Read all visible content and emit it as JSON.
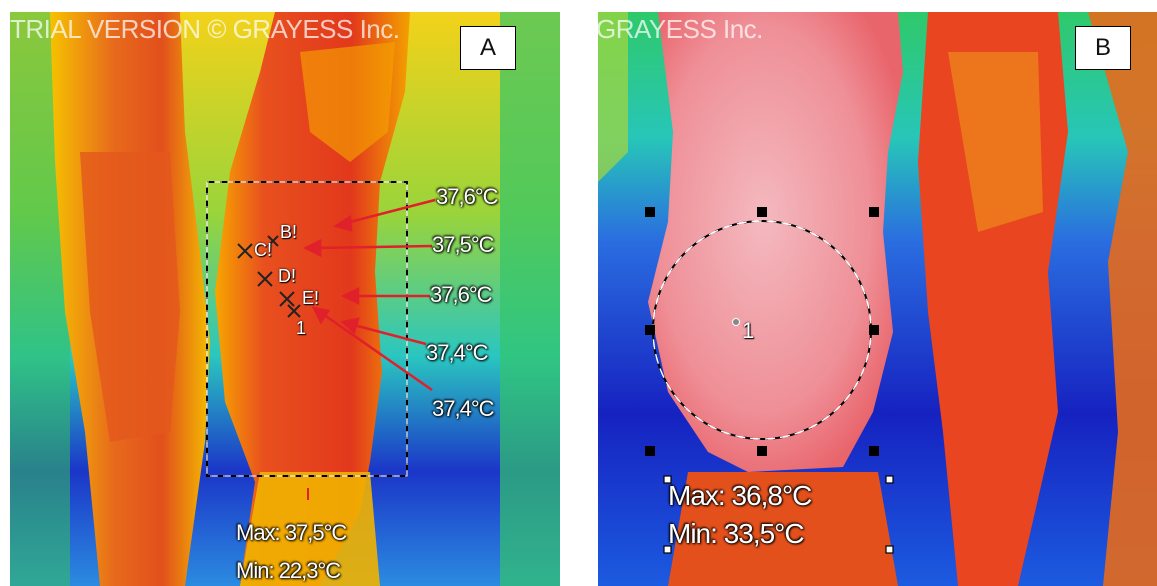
{
  "panel_a": {
    "label": "A",
    "watermark": "TRIAL VERSION © GRAYESS Inc.",
    "point_labels": [
      "B!",
      "C!",
      "D!",
      "E!",
      "1"
    ],
    "temperatures": [
      "37,6°C",
      "37,5°C",
      "37,6°C",
      "37,4°C",
      "37,4°C"
    ],
    "max_label": "Max:",
    "max_value": "37,5°C",
    "min_label": "Min:",
    "min_value": "22,3°C"
  },
  "panel_b": {
    "label": "B",
    "watermark": "GRAYESS Inc.",
    "point_label": "1",
    "max_label": "Max:",
    "max_value": "36,8°C",
    "min_label": "Min:",
    "min_value": "33,5°C"
  },
  "colors": {
    "arrow": "#e0202a",
    "hot": "#e83a1f",
    "warm": "#f7b800",
    "cool": "#2ad070",
    "cold": "#1a2fc8"
  }
}
